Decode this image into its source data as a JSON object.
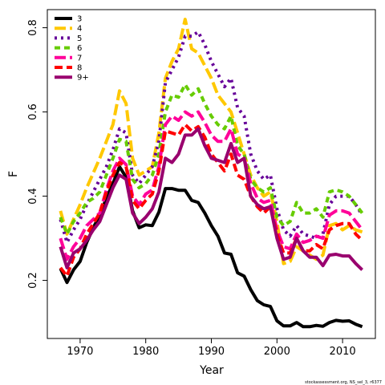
{
  "chart_data": {
    "type": "line",
    "title": "",
    "xlabel": "Year",
    "ylabel": "F",
    "xlim": [
      1965,
      2015
    ],
    "ylim": [
      0.062,
      0.843
    ],
    "xticks": [
      1970,
      1980,
      1990,
      2000,
      2010
    ],
    "yticks": [
      0.2,
      0.4,
      0.6,
      0.8
    ],
    "grid": false,
    "legend": "top-left",
    "credit": "stockassessment.org, NS_sel_3, r6377",
    "x": [
      1967,
      1968,
      1969,
      1970,
      1971,
      1972,
      1973,
      1974,
      1975,
      1976,
      1977,
      1978,
      1979,
      1980,
      1981,
      1982,
      1983,
      1984,
      1985,
      1986,
      1987,
      1988,
      1989,
      1990,
      1991,
      1992,
      1993,
      1994,
      1995,
      1996,
      1997,
      1998,
      1999,
      2000,
      2001,
      2002,
      2003,
      2004,
      2005,
      2006,
      2007,
      2008,
      2009,
      2010,
      2011,
      2012,
      2013
    ],
    "series": [
      {
        "name": "3",
        "color": "#000000",
        "dash": "solid",
        "values": [
          0.228,
          0.195,
          0.225,
          0.245,
          0.29,
          0.325,
          0.355,
          0.395,
          0.43,
          0.47,
          0.445,
          0.365,
          0.325,
          0.332,
          0.33,
          0.362,
          0.418,
          0.418,
          0.414,
          0.414,
          0.39,
          0.385,
          0.36,
          0.33,
          0.305,
          0.265,
          0.262,
          0.218,
          0.21,
          0.178,
          0.152,
          0.142,
          0.138,
          0.104,
          0.092,
          0.092,
          0.1,
          0.09,
          0.09,
          0.093,
          0.091,
          0.1,
          0.105,
          0.103,
          0.104,
          0.096,
          0.09
        ]
      },
      {
        "name": "4",
        "color": "#ffc800",
        "dash": "long",
        "values": [
          0.365,
          0.31,
          0.345,
          0.38,
          0.42,
          0.455,
          0.49,
          0.53,
          0.57,
          0.65,
          0.62,
          0.49,
          0.45,
          0.46,
          0.47,
          0.55,
          0.68,
          0.72,
          0.75,
          0.82,
          0.75,
          0.74,
          0.71,
          0.68,
          0.64,
          0.62,
          0.6,
          0.55,
          0.5,
          0.45,
          0.42,
          0.4,
          0.41,
          0.34,
          0.24,
          0.245,
          0.28,
          0.27,
          0.26,
          0.25,
          0.26,
          0.33,
          0.335,
          0.32,
          0.33,
          0.32,
          0.315
        ]
      },
      {
        "name": "5",
        "color": "#660099",
        "dash": "dot",
        "values": [
          0.345,
          0.29,
          0.32,
          0.345,
          0.38,
          0.41,
          0.44,
          0.47,
          0.51,
          0.56,
          0.55,
          0.45,
          0.43,
          0.45,
          0.47,
          0.53,
          0.67,
          0.7,
          0.73,
          0.78,
          0.78,
          0.79,
          0.76,
          0.72,
          0.69,
          0.66,
          0.68,
          0.61,
          0.59,
          0.5,
          0.46,
          0.44,
          0.45,
          0.37,
          0.32,
          0.305,
          0.33,
          0.31,
          0.305,
          0.3,
          0.31,
          0.38,
          0.4,
          0.4,
          0.4,
          0.38,
          0.355
        ]
      },
      {
        "name": "6",
        "color": "#66cc00",
        "dash": "short",
        "values": [
          0.35,
          0.31,
          0.34,
          0.36,
          0.385,
          0.395,
          0.41,
          0.45,
          0.49,
          0.535,
          0.53,
          0.44,
          0.42,
          0.43,
          0.45,
          0.5,
          0.6,
          0.64,
          0.635,
          0.665,
          0.64,
          0.655,
          0.62,
          0.59,
          0.57,
          0.56,
          0.59,
          0.52,
          0.5,
          0.44,
          0.42,
          0.41,
          0.42,
          0.35,
          0.33,
          0.34,
          0.385,
          0.36,
          0.36,
          0.37,
          0.35,
          0.41,
          0.415,
          0.41,
          0.4,
          0.38,
          0.36
        ]
      },
      {
        "name": "7",
        "color": "#ff0099",
        "dash": "long",
        "values": [
          0.3,
          0.25,
          0.28,
          0.3,
          0.33,
          0.345,
          0.36,
          0.415,
          0.46,
          0.49,
          0.475,
          0.4,
          0.38,
          0.405,
          0.415,
          0.47,
          0.57,
          0.59,
          0.58,
          0.6,
          0.59,
          0.6,
          0.575,
          0.545,
          0.53,
          0.53,
          0.56,
          0.5,
          0.49,
          0.43,
          0.395,
          0.385,
          0.39,
          0.32,
          0.28,
          0.275,
          0.31,
          0.29,
          0.295,
          0.305,
          0.3,
          0.355,
          0.365,
          0.365,
          0.36,
          0.34,
          0.32
        ]
      },
      {
        "name": "8",
        "color": "#ff0000",
        "dash": "dash",
        "values": [
          0.23,
          0.21,
          0.255,
          0.275,
          0.31,
          0.335,
          0.36,
          0.41,
          0.45,
          0.48,
          0.47,
          0.39,
          0.37,
          0.39,
          0.405,
          0.46,
          0.555,
          0.55,
          0.545,
          0.57,
          0.555,
          0.565,
          0.54,
          0.5,
          0.48,
          0.46,
          0.5,
          0.45,
          0.44,
          0.4,
          0.375,
          0.36,
          0.375,
          0.31,
          0.265,
          0.265,
          0.3,
          0.27,
          0.27,
          0.285,
          0.275,
          0.32,
          0.33,
          0.335,
          0.335,
          0.31,
          0.295
        ]
      },
      {
        "name": "9+",
        "color": "#99006e",
        "dash": "solid",
        "values": [
          0.28,
          0.23,
          0.265,
          0.275,
          0.295,
          0.32,
          0.34,
          0.38,
          0.42,
          0.45,
          0.44,
          0.36,
          0.335,
          0.35,
          0.37,
          0.41,
          0.49,
          0.48,
          0.5,
          0.545,
          0.545,
          0.56,
          0.52,
          0.49,
          0.485,
          0.48,
          0.525,
          0.48,
          0.49,
          0.4,
          0.38,
          0.37,
          0.375,
          0.3,
          0.25,
          0.255,
          0.3,
          0.27,
          0.255,
          0.255,
          0.235,
          0.26,
          0.262,
          0.258,
          0.258,
          0.24,
          0.225
        ]
      }
    ]
  }
}
